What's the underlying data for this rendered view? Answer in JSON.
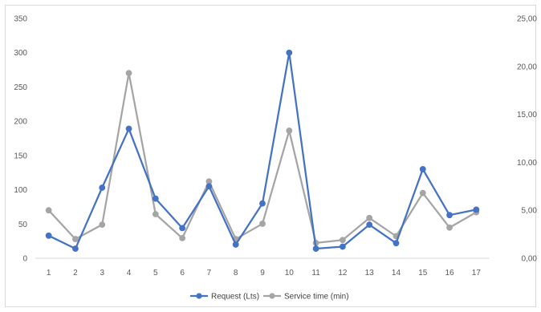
{
  "chart_data": {
    "type": "line",
    "categories": [
      "1",
      "2",
      "3",
      "4",
      "5",
      "6",
      "7",
      "8",
      "9",
      "10",
      "11",
      "12",
      "13",
      "14",
      "15",
      "16",
      "17"
    ],
    "series": [
      {
        "name": "Request (Lts)",
        "axis": "left",
        "color": "#4472c4",
        "values": [
          33,
          14,
          103,
          189,
          87,
          44,
          105,
          20,
          80,
          300,
          14,
          17,
          49,
          22,
          130,
          63,
          71
        ]
      },
      {
        "name": "Service time (min)",
        "axis": "right",
        "color": "#a5a5a5",
        "values": [
          5.0,
          2.0,
          3.5,
          19.3,
          4.6,
          2.1,
          8.0,
          2.0,
          3.6,
          13.3,
          1.6,
          1.9,
          4.2,
          2.3,
          6.8,
          3.2,
          4.8
        ]
      }
    ],
    "y_left": {
      "min": 0,
      "max": 350,
      "ticks": [
        "0",
        "50",
        "100",
        "150",
        "200",
        "250",
        "300",
        "350"
      ]
    },
    "y_right": {
      "min": 0,
      "max": 25,
      "ticks": [
        "0,00",
        "5,00",
        "10,00",
        "15,00",
        "20,00",
        "25,00"
      ]
    },
    "grid": false,
    "legend_position": "bottom"
  }
}
